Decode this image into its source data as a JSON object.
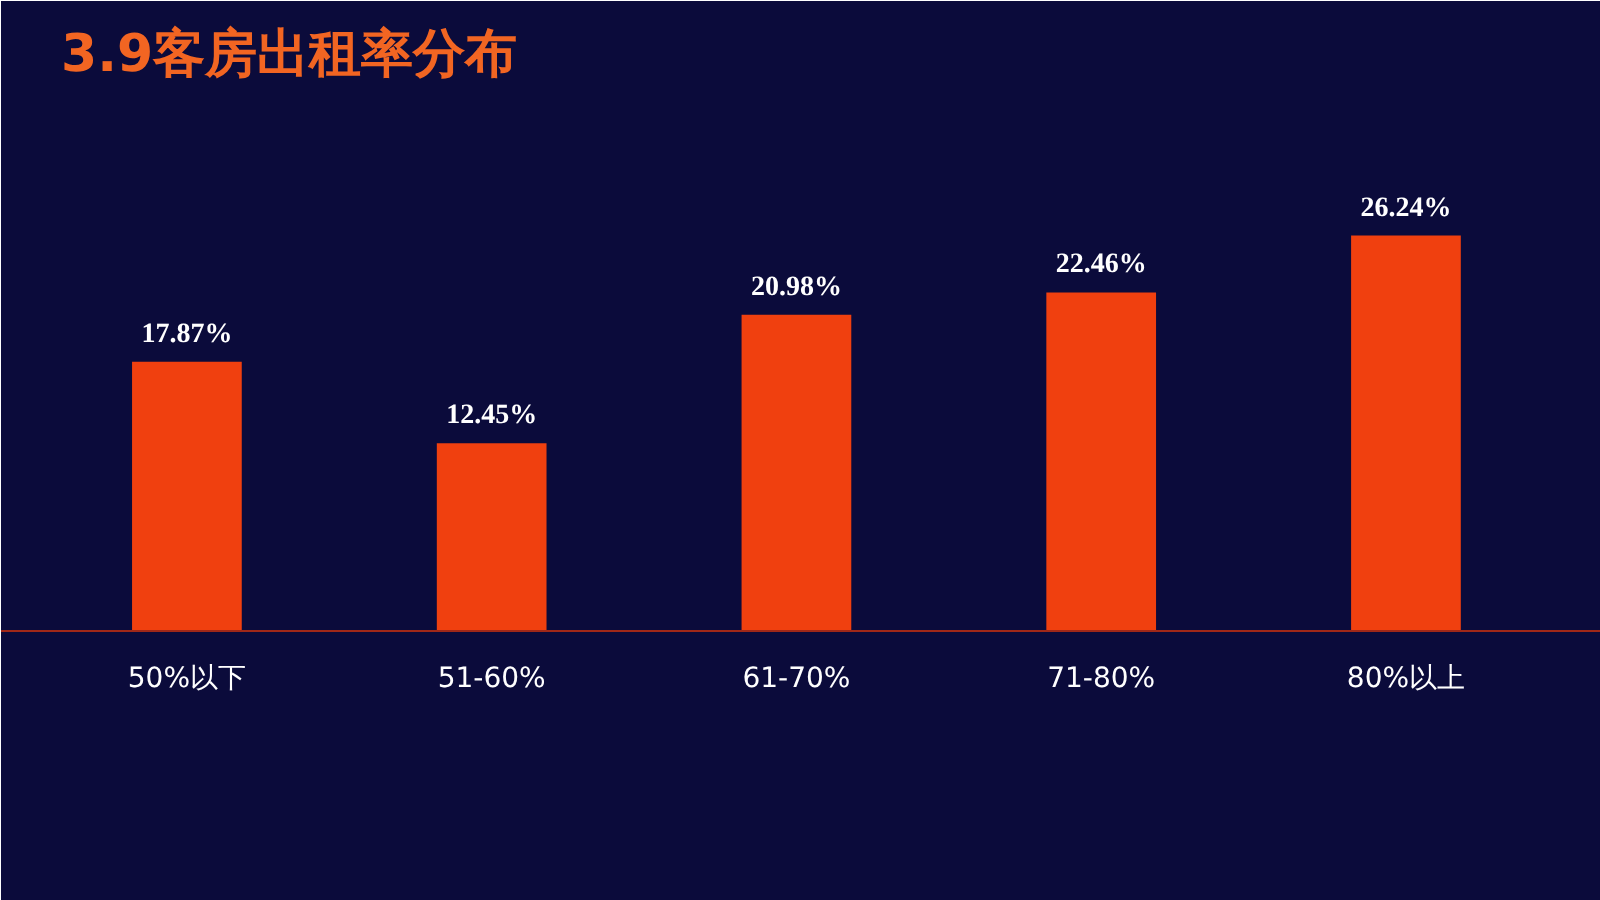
{
  "chart_data": {
    "type": "bar",
    "title": "3.9客房出租率分布",
    "categories": [
      "50%以下",
      "51-60%",
      "61-70%",
      "71-80%",
      "80%以上"
    ],
    "values": [
      17.87,
      12.45,
      20.98,
      22.46,
      26.24
    ],
    "value_labels": [
      "17.87%",
      "12.45%",
      "20.98%",
      "22.46%",
      "26.24%"
    ],
    "color": "#f0400f",
    "grid": false
  }
}
